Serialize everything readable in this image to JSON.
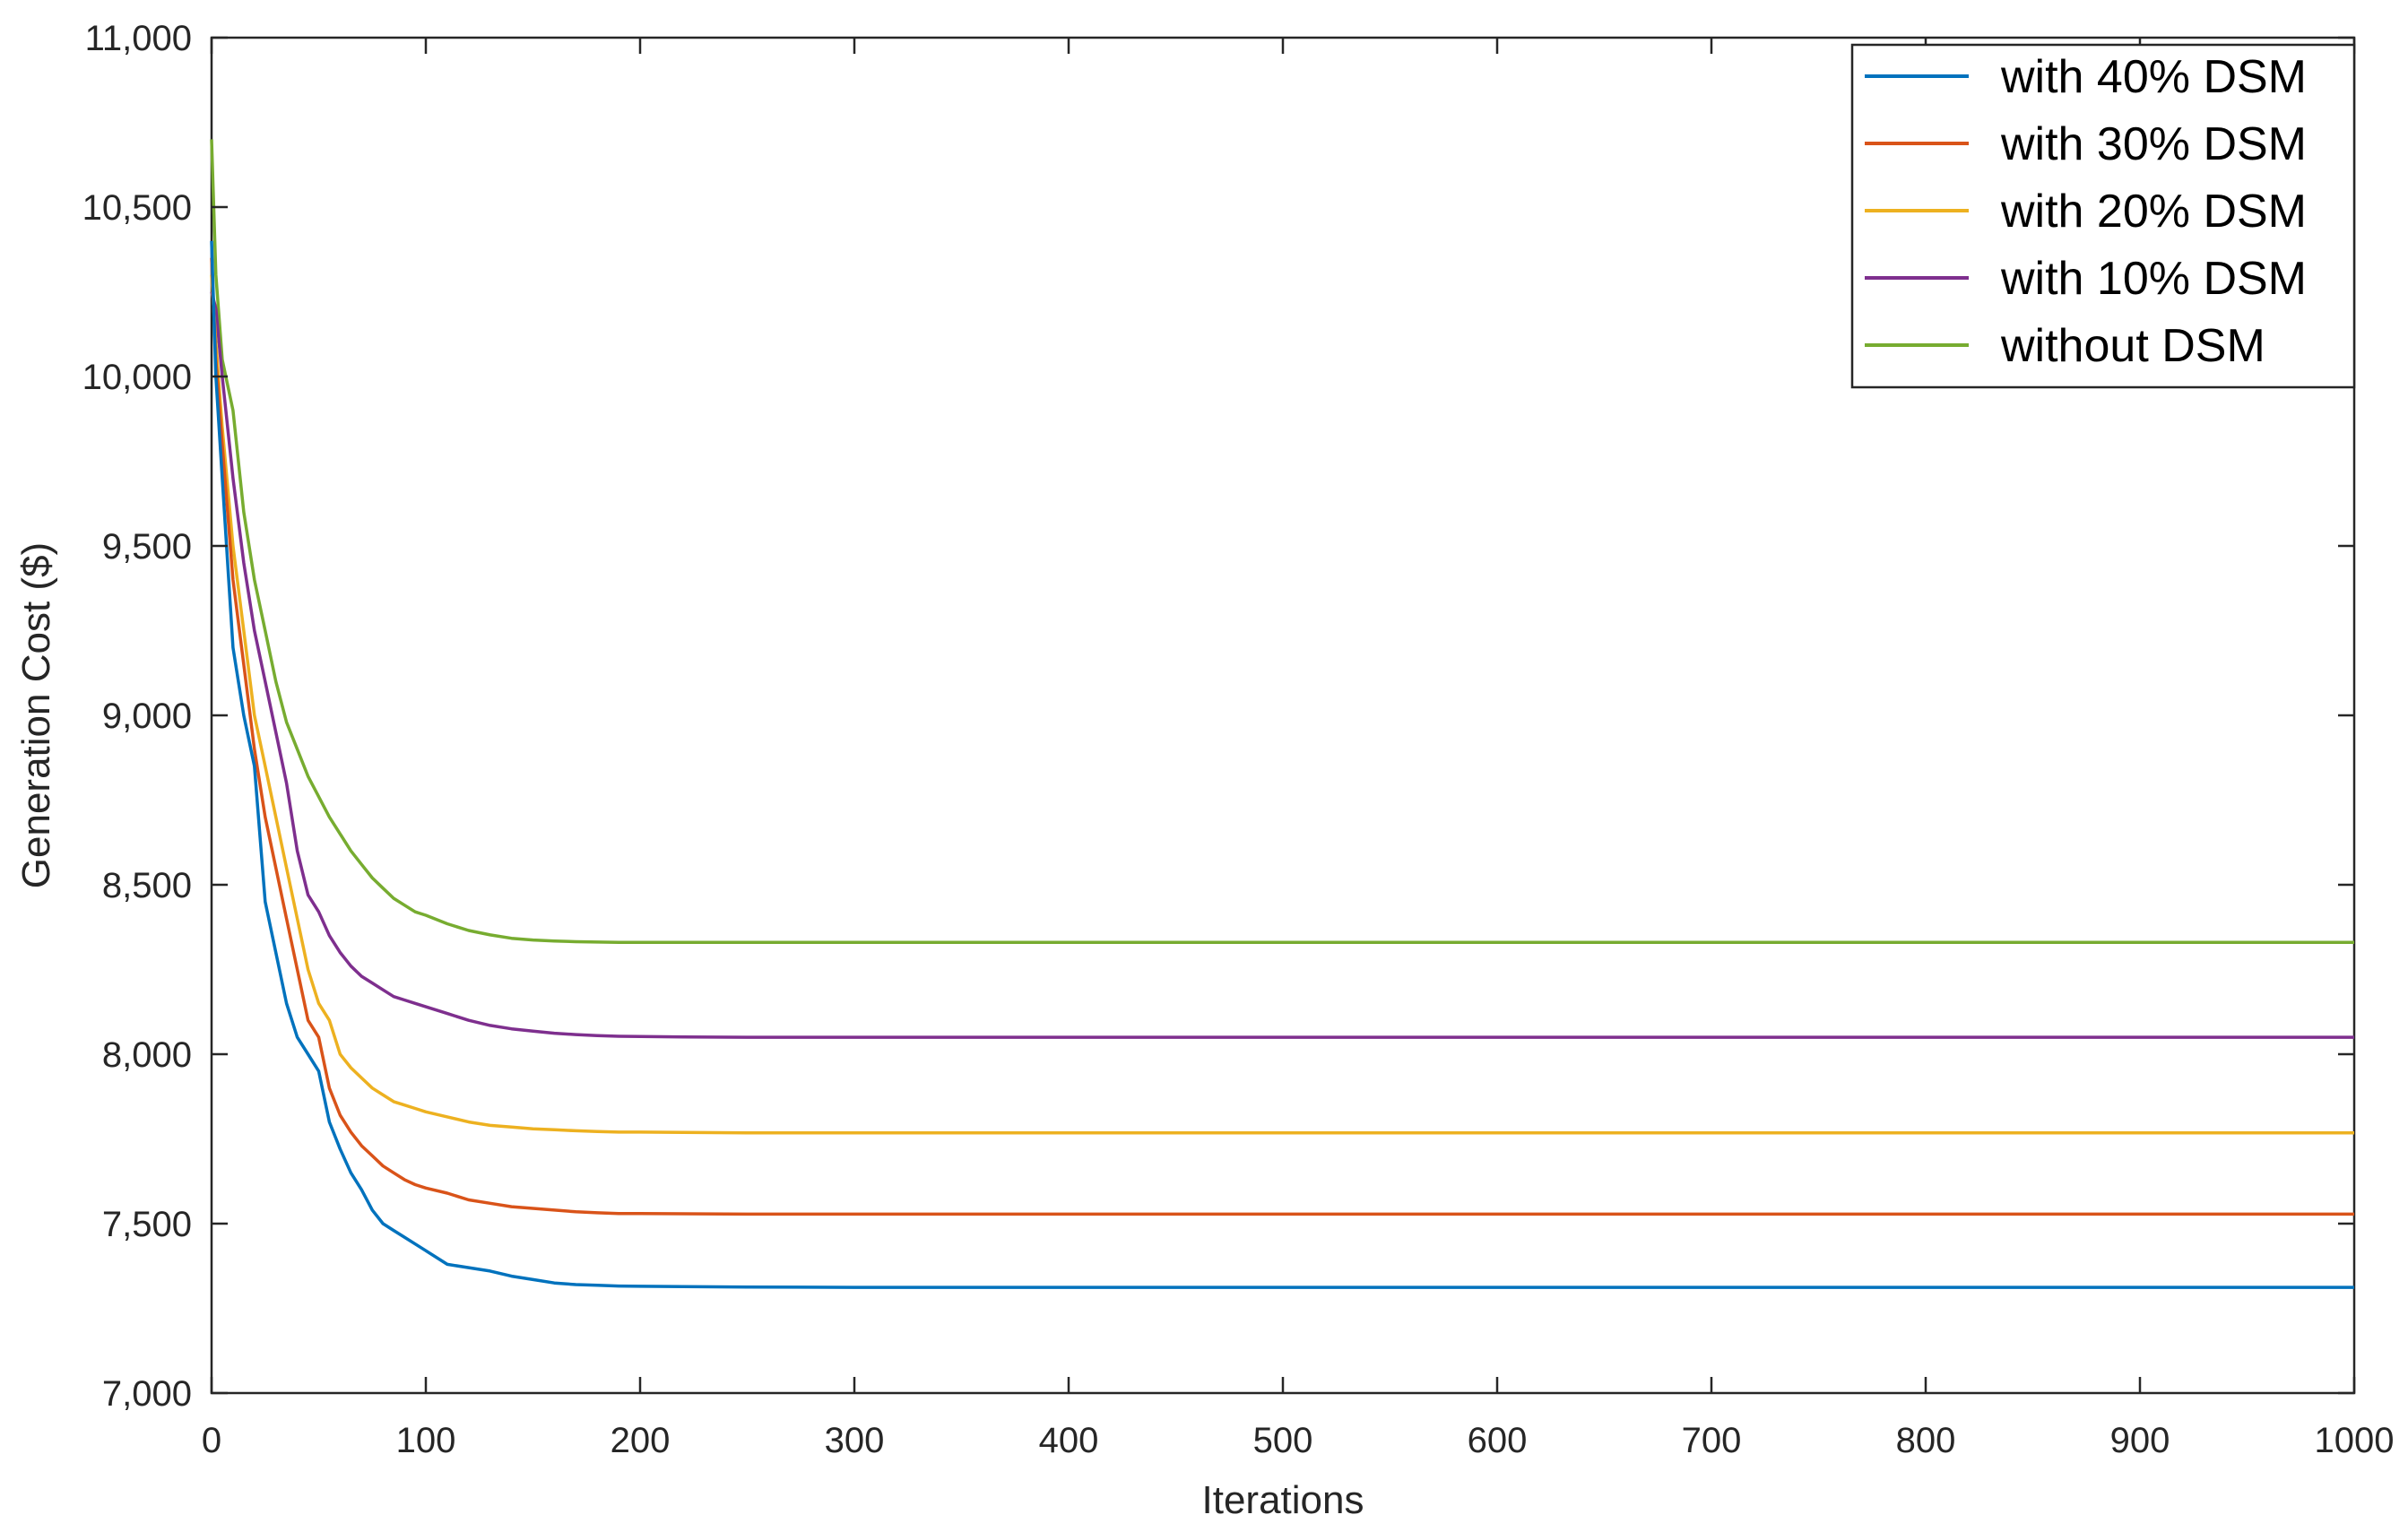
{
  "chart_data": {
    "type": "line",
    "xlabel": "Iterations",
    "ylabel": "Generation Cost ($)",
    "xlim": [
      0,
      1000
    ],
    "ylim": [
      7000,
      11000
    ],
    "xticks": [
      0,
      100,
      200,
      300,
      400,
      500,
      600,
      700,
      800,
      900,
      1000
    ],
    "xtick_labels": [
      "0",
      "100",
      "200",
      "300",
      "400",
      "500",
      "600",
      "700",
      "800",
      "900",
      "1000"
    ],
    "yticks": [
      7000,
      7500,
      8000,
      8500,
      9000,
      9500,
      10000,
      10500,
      11000
    ],
    "ytick_labels": [
      "7,000",
      "7,500",
      "8,000",
      "8,500",
      "9,000",
      "9,500",
      "10,000",
      "10,500",
      "11,000"
    ],
    "grid": false,
    "legend_position": "top-right",
    "x": [
      0,
      2,
      5,
      10,
      15,
      20,
      25,
      30,
      35,
      40,
      45,
      50,
      55,
      60,
      65,
      70,
      75,
      80,
      85,
      90,
      95,
      100,
      110,
      120,
      130,
      140,
      150,
      160,
      170,
      180,
      190,
      200,
      220,
      250,
      300,
      400,
      500,
      600,
      700,
      800,
      900,
      1000
    ],
    "series": [
      {
        "name": "with 40% DSM",
        "color": "#0072BD",
        "values": [
          10400,
          10000,
          9700,
          9200,
          9000,
          8850,
          8450,
          8300,
          8150,
          8050,
          8000,
          7950,
          7800,
          7720,
          7650,
          7600,
          7540,
          7500,
          7480,
          7460,
          7440,
          7420,
          7380,
          7370,
          7360,
          7345,
          7335,
          7325,
          7320,
          7318,
          7316,
          7315,
          7314,
          7313,
          7312,
          7312,
          7312,
          7312,
          7312,
          7312,
          7312,
          7312
        ]
      },
      {
        "name": "with 30% DSM",
        "color": "#D95319",
        "values": [
          10350,
          10050,
          9800,
          9400,
          9150,
          8900,
          8700,
          8550,
          8400,
          8250,
          8100,
          8050,
          7900,
          7820,
          7770,
          7730,
          7700,
          7670,
          7650,
          7630,
          7615,
          7605,
          7590,
          7570,
          7560,
          7550,
          7545,
          7540,
          7535,
          7532,
          7530,
          7530,
          7529,
          7528,
          7528,
          7528,
          7528,
          7528,
          7528,
          7528,
          7528,
          7528
        ]
      },
      {
        "name": "with 20% DSM",
        "color": "#EDB120",
        "values": [
          10300,
          10100,
          9850,
          9500,
          9250,
          9000,
          8850,
          8700,
          8550,
          8400,
          8250,
          8150,
          8100,
          8000,
          7960,
          7930,
          7900,
          7880,
          7860,
          7850,
          7840,
          7830,
          7815,
          7800,
          7790,
          7785,
          7780,
          7777,
          7774,
          7772,
          7770,
          7770,
          7769,
          7768,
          7768,
          7768,
          7768,
          7768,
          7768,
          7768,
          7768,
          7768
        ]
      },
      {
        "name": "with 10% DSM",
        "color": "#7E2F8E",
        "values": [
          10250,
          10200,
          10000,
          9700,
          9450,
          9250,
          9100,
          8950,
          8800,
          8600,
          8470,
          8420,
          8350,
          8300,
          8260,
          8230,
          8210,
          8190,
          8170,
          8160,
          8150,
          8140,
          8120,
          8100,
          8085,
          8075,
          8068,
          8062,
          8058,
          8055,
          8053,
          8052,
          8051,
          8050,
          8050,
          8050,
          8050,
          8050,
          8050,
          8050,
          8050,
          8050
        ]
      },
      {
        "name": "without DSM",
        "color": "#77AC30",
        "values": [
          10700,
          10300,
          10050,
          9900,
          9600,
          9400,
          9250,
          9100,
          8980,
          8900,
          8820,
          8760,
          8700,
          8650,
          8600,
          8560,
          8520,
          8490,
          8460,
          8440,
          8420,
          8410,
          8385,
          8365,
          8352,
          8342,
          8337,
          8334,
          8332,
          8331,
          8330,
          8330,
          8330,
          8330,
          8330,
          8330,
          8330,
          8330,
          8330,
          8330,
          8330,
          8330
        ]
      }
    ]
  }
}
